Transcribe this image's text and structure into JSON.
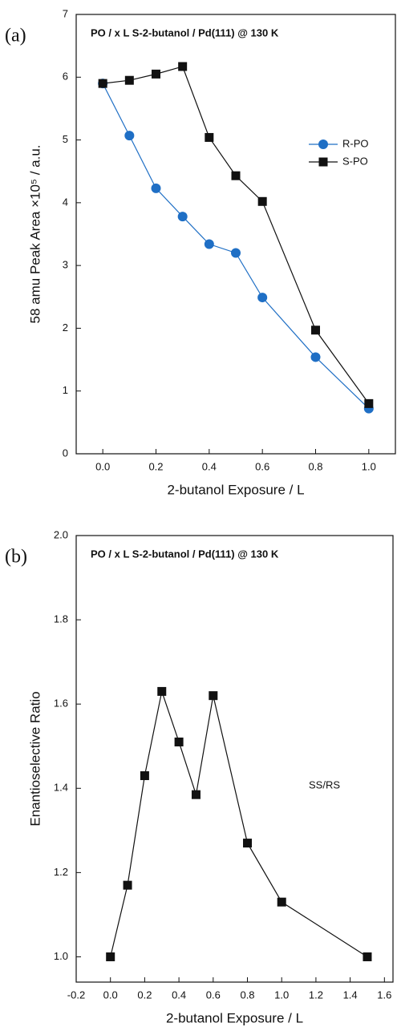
{
  "chart_data": [
    {
      "type": "line",
      "label": "(a)",
      "title": "PO / x L S-2-butanol / Pd(111) @ 130 K",
      "x_label": "2-butanol Exposure / L",
      "y_label": "58 amu Peak Area ×10⁵ / a.u.",
      "x": [
        0,
        0.1,
        0.2,
        0.3,
        0.4,
        0.5,
        0.6,
        0.8,
        1.0
      ],
      "series": [
        {
          "name": "R-PO",
          "color": "#1f6fc5",
          "marker": "circle",
          "values": [
            5.9,
            5.07,
            4.23,
            3.78,
            3.34,
            3.2,
            2.49,
            1.54,
            0.72
          ]
        },
        {
          "name": "S-PO",
          "color": "#111111",
          "marker": "square",
          "values": [
            5.9,
            5.95,
            6.05,
            6.17,
            5.04,
            4.43,
            4.02,
            1.97,
            0.8
          ]
        }
      ],
      "xlim": [
        -0.1,
        1.1
      ],
      "xticks": [
        {
          "value": 0,
          "label": "0.0"
        },
        {
          "value": 0.2,
          "label": "0.2"
        },
        {
          "value": 0.4,
          "label": "0.4"
        },
        {
          "value": 0.6,
          "label": "0.6"
        },
        {
          "value": 0.8,
          "label": "0.8"
        },
        {
          "value": 1.0,
          "label": "1.0"
        }
      ],
      "ylim": [
        0,
        7
      ],
      "yticks": [
        0,
        1,
        2,
        3,
        4,
        5,
        6,
        7
      ],
      "legend": "right"
    },
    {
      "type": "line",
      "label": "(b)",
      "title": "PO / x L S-2-butanol / Pd(111) @ 130 K",
      "x_label": "2-butanol Exposure / L",
      "y_label": "Enantioselective Ratio",
      "annotation": "SS/RS",
      "x": [
        0,
        0.1,
        0.2,
        0.3,
        0.4,
        0.5,
        0.6,
        0.8,
        1.0,
        1.5
      ],
      "series": [
        {
          "color": "#111111",
          "marker": "square",
          "values": [
            1.0,
            1.17,
            1.43,
            1.63,
            1.51,
            1.385,
            1.62,
            1.27,
            1.13,
            1.0
          ]
        }
      ],
      "xlim": [
        -0.2,
        1.65
      ],
      "xticks": [
        {
          "value": -0.2,
          "label": "-0.2"
        },
        {
          "value": 0,
          "label": "0.0"
        },
        {
          "value": 0.2,
          "label": "0.2"
        },
        {
          "value": 0.4,
          "label": "0.4"
        },
        {
          "value": 0.6,
          "label": "0.6"
        },
        {
          "value": 0.8,
          "label": "0.8"
        },
        {
          "value": 1.0,
          "label": "1.0"
        },
        {
          "value": 1.2,
          "label": "1.2"
        },
        {
          "value": 1.4,
          "label": "1.4"
        },
        {
          "value": 1.6,
          "label": "1.6"
        }
      ],
      "ylim": [
        0.94,
        2.0
      ],
      "yticks": [
        {
          "value": 1.0,
          "label": "1.0"
        },
        {
          "value": 1.2,
          "label": "1.2"
        },
        {
          "value": 1.4,
          "label": "1.4"
        },
        {
          "value": 1.6,
          "label": "1.6"
        },
        {
          "value": 1.8,
          "label": "1.8"
        },
        {
          "value": 2.0,
          "label": "2.0"
        }
      ]
    }
  ]
}
